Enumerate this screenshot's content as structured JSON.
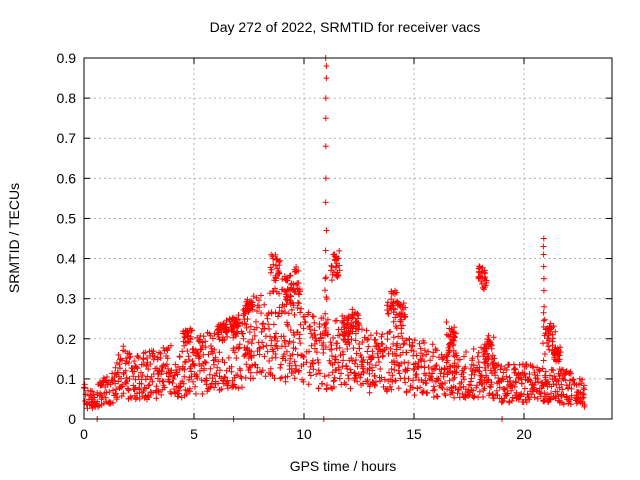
{
  "chart_data": {
    "type": "scatter",
    "title": "Day 272 of 2022, SRMTID for receiver vacs",
    "xlabel": "GPS time / hours",
    "ylabel": "SRMTID / TECUs",
    "xlim": [
      0,
      24
    ],
    "ylim": [
      0,
      0.9
    ],
    "xticks": [
      0,
      5,
      10,
      15,
      20
    ],
    "xtick_labels": [
      "0",
      "5",
      "10",
      "15",
      "20"
    ],
    "yticks": [
      0,
      0.1,
      0.2,
      0.3,
      0.4,
      0.5,
      0.6,
      0.7,
      0.8,
      0.9
    ],
    "ytick_labels": [
      "0",
      "0.1",
      "0.2",
      "0.3",
      "0.4",
      "0.5",
      "0.6",
      "0.7",
      "0.8",
      "0.9"
    ],
    "grid": true,
    "marker": "+",
    "marker_color": "#ff0000",
    "series": [
      {
        "name": "SRMTID",
        "baseline": [
          [
            0.0,
            0.06
          ],
          [
            0.5,
            0.05
          ],
          [
            1.0,
            0.07
          ],
          [
            1.5,
            0.1
          ],
          [
            1.8,
            0.12
          ],
          [
            2.2,
            0.1
          ],
          [
            3.0,
            0.11
          ],
          [
            4.0,
            0.12
          ],
          [
            4.5,
            0.11
          ],
          [
            5.0,
            0.13
          ],
          [
            6.0,
            0.15
          ],
          [
            7.0,
            0.17
          ],
          [
            8.0,
            0.2
          ],
          [
            9.0,
            0.21
          ],
          [
            10.0,
            0.18
          ],
          [
            11.0,
            0.16
          ],
          [
            12.0,
            0.17
          ],
          [
            13.0,
            0.14
          ],
          [
            14.0,
            0.15
          ],
          [
            15.0,
            0.13
          ],
          [
            16.0,
            0.12
          ],
          [
            17.0,
            0.11
          ],
          [
            18.0,
            0.12
          ],
          [
            19.0,
            0.09
          ],
          [
            20.0,
            0.09
          ],
          [
            21.0,
            0.08
          ],
          [
            22.0,
            0.08
          ],
          [
            22.8,
            0.06
          ]
        ],
        "bursts": [
          [
            4.7,
            0.2,
            0.22
          ],
          [
            6.3,
            0.21,
            0.24
          ],
          [
            6.9,
            0.22,
            0.25
          ],
          [
            7.5,
            0.27,
            0.3
          ],
          [
            8.7,
            0.34,
            0.41
          ],
          [
            9.2,
            0.28,
            0.36
          ],
          [
            9.6,
            0.3,
            0.38
          ],
          [
            11.4,
            0.36,
            0.41
          ],
          [
            11.9,
            0.2,
            0.25
          ],
          [
            12.3,
            0.22,
            0.27
          ],
          [
            14.0,
            0.25,
            0.32
          ],
          [
            14.4,
            0.24,
            0.29
          ],
          [
            16.7,
            0.18,
            0.23
          ],
          [
            18.1,
            0.33,
            0.38
          ],
          [
            18.4,
            0.15,
            0.2
          ],
          [
            21.2,
            0.18,
            0.24
          ],
          [
            21.5,
            0.14,
            0.18
          ]
        ],
        "spikes": [
          [
            11.0,
            [
              0.42,
              0.47,
              0.54,
              0.6,
              0.68,
              0.75,
              0.8,
              0.85,
              0.88,
              0.9
            ]
          ],
          [
            20.9,
            [
              0.28,
              0.32,
              0.35,
              0.38,
              0.41,
              0.43,
              0.45
            ]
          ]
        ],
        "zeros": [
          0.6,
          6.8,
          10.9,
          19.0
        ]
      }
    ]
  }
}
